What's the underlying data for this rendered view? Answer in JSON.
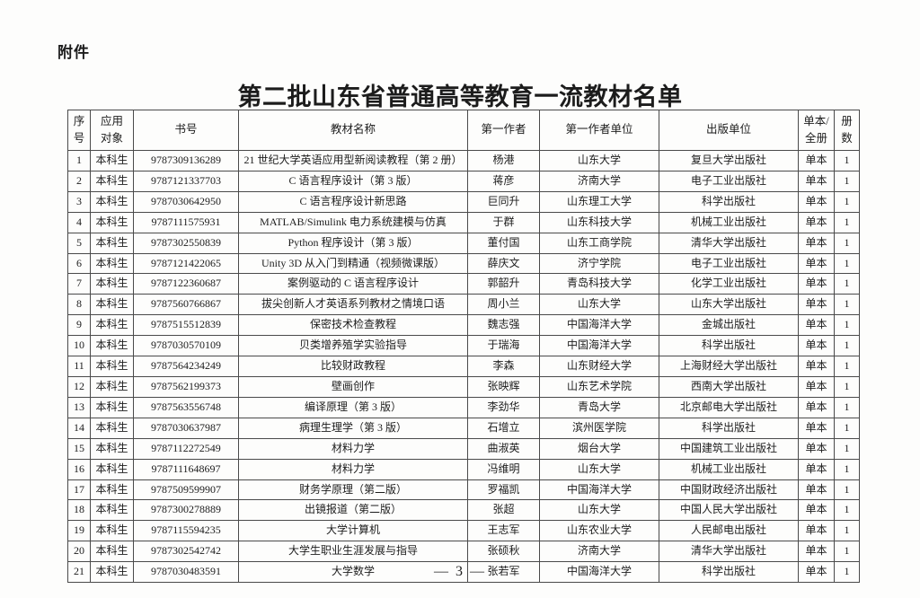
{
  "attachment_label": "附件",
  "title": "第二批山东省普通高等教育一流教材名单",
  "table": {
    "headers": [
      "序\n号",
      "应用\n对象",
      "书号",
      "教材名称",
      "第一作者",
      "第一作者单位",
      "出版单位",
      "单本/\n全册",
      "册\n数"
    ],
    "rows": [
      [
        "1",
        "本科生",
        "9787309136289",
        "21 世纪大学英语应用型新阅读教程（第 2 册）",
        "杨港",
        "山东大学",
        "复旦大学出版社",
        "单本",
        "1"
      ],
      [
        "2",
        "本科生",
        "9787121337703",
        "C 语言程序设计（第 3 版）",
        "蒋彦",
        "济南大学",
        "电子工业出版社",
        "单本",
        "1"
      ],
      [
        "3",
        "本科生",
        "9787030642950",
        "C 语言程序设计新思路",
        "巨同升",
        "山东理工大学",
        "科学出版社",
        "单本",
        "1"
      ],
      [
        "4",
        "本科生",
        "9787111575931",
        "MATLAB/Simulink 电力系统建模与仿真",
        "于群",
        "山东科技大学",
        "机械工业出版社",
        "单本",
        "1"
      ],
      [
        "5",
        "本科生",
        "9787302550839",
        "Python 程序设计（第 3 版）",
        "董付国",
        "山东工商学院",
        "清华大学出版社",
        "单本",
        "1"
      ],
      [
        "6",
        "本科生",
        "9787121422065",
        "Unity 3D 从入门到精通（视频微课版）",
        "薛庆文",
        "济宁学院",
        "电子工业出版社",
        "单本",
        "1"
      ],
      [
        "7",
        "本科生",
        "9787122360687",
        "案例驱动的 C 语言程序设计",
        "郭韶升",
        "青岛科技大学",
        "化学工业出版社",
        "单本",
        "1"
      ],
      [
        "8",
        "本科生",
        "9787560766867",
        "拔尖创新人才英语系列教材之情境口语",
        "周小兰",
        "山东大学",
        "山东大学出版社",
        "单本",
        "1"
      ],
      [
        "9",
        "本科生",
        "9787515512839",
        "保密技术检查教程",
        "魏志强",
        "中国海洋大学",
        "金城出版社",
        "单本",
        "1"
      ],
      [
        "10",
        "本科生",
        "9787030570109",
        "贝类增养殖学实验指导",
        "于瑞海",
        "中国海洋大学",
        "科学出版社",
        "单本",
        "1"
      ],
      [
        "11",
        "本科生",
        "9787564234249",
        "比较财政教程",
        "李森",
        "山东财经大学",
        "上海财经大学出版社",
        "单本",
        "1"
      ],
      [
        "12",
        "本科生",
        "9787562199373",
        "壁画创作",
        "张映辉",
        "山东艺术学院",
        "西南大学出版社",
        "单本",
        "1"
      ],
      [
        "13",
        "本科生",
        "9787563556748",
        "编译原理（第 3 版）",
        "李劲华",
        "青岛大学",
        "北京邮电大学出版社",
        "单本",
        "1"
      ],
      [
        "14",
        "本科生",
        "9787030637987",
        "病理生理学（第 3 版）",
        "石增立",
        "滨州医学院",
        "科学出版社",
        "单本",
        "1"
      ],
      [
        "15",
        "本科生",
        "9787112272549",
        "材料力学",
        "曲淑英",
        "烟台大学",
        "中国建筑工业出版社",
        "单本",
        "1"
      ],
      [
        "16",
        "本科生",
        "9787111648697",
        "材料力学",
        "冯维明",
        "山东大学",
        "机械工业出版社",
        "单本",
        "1"
      ],
      [
        "17",
        "本科生",
        "9787509599907",
        "财务学原理（第二版）",
        "罗福凯",
        "中国海洋大学",
        "中国财政经济出版社",
        "单本",
        "1"
      ],
      [
        "18",
        "本科生",
        "9787300278889",
        "出镜报道（第二版）",
        "张超",
        "山东大学",
        "中国人民大学出版社",
        "单本",
        "1"
      ],
      [
        "19",
        "本科生",
        "9787115594235",
        "大学计算机",
        "王志军",
        "山东农业大学",
        "人民邮电出版社",
        "单本",
        "1"
      ],
      [
        "20",
        "本科生",
        "9787302542742",
        "大学生职业生涯发展与指导",
        "张硕秋",
        "济南大学",
        "清华大学出版社",
        "单本",
        "1"
      ],
      [
        "21",
        "本科生",
        "9787030483591",
        "大学数学",
        "张若军",
        "中国海洋大学",
        "科学出版社",
        "单本",
        "1"
      ]
    ]
  },
  "footer": {
    "page_number": "— 3 —"
  }
}
